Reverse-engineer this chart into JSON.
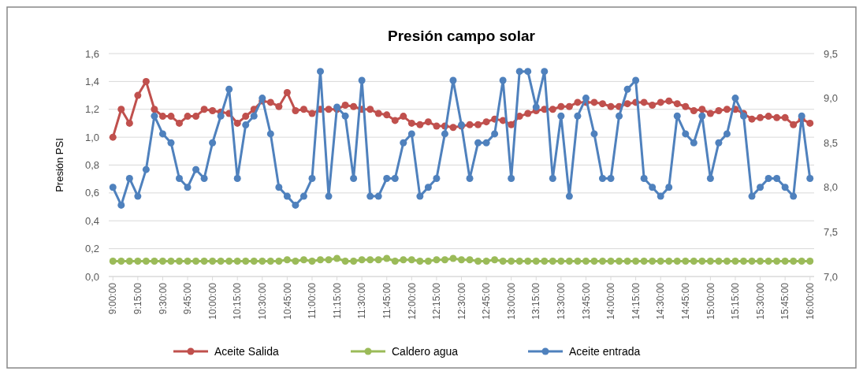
{
  "chart_data": {
    "type": "line",
    "title": "Presión campo solar",
    "ylabel": "Presión  PSI",
    "categories": [
      "9:00:00",
      null,
      null,
      "9:15:00",
      null,
      null,
      "9:30:00",
      null,
      null,
      "9:45:00",
      null,
      null,
      "10:00:00",
      null,
      null,
      "10:15:00",
      null,
      null,
      "10:30:00",
      null,
      null,
      "10:45:00",
      null,
      null,
      "11:00:00",
      null,
      null,
      "11:15:00",
      null,
      null,
      "11:30:00",
      null,
      null,
      "11:45:00",
      null,
      null,
      "12:00:00",
      null,
      null,
      "12:15:00",
      null,
      null,
      "12:30:00",
      null,
      null,
      "12:45:00",
      null,
      null,
      "13:00:00",
      null,
      null,
      "13:15:00",
      null,
      null,
      "13:30:00",
      null,
      null,
      "13:45:00",
      null,
      null,
      "14:00:00",
      null,
      null,
      "14:15:00",
      null,
      null,
      "14:30:00",
      null,
      null,
      "14:45:00",
      null,
      null,
      "15:00:00",
      null,
      null,
      "15:15:00",
      null,
      null,
      "15:30:00",
      null,
      null,
      "15:45:00",
      null,
      null,
      "16:00:00"
    ],
    "series": [
      {
        "name": "Aceite Salida",
        "color": "#c0504d",
        "values": [
          1.0,
          1.2,
          1.1,
          1.3,
          1.4,
          1.2,
          1.15,
          1.15,
          1.1,
          1.15,
          1.15,
          1.2,
          1.19,
          1.18,
          1.17,
          1.1,
          1.15,
          1.2,
          1.26,
          1.25,
          1.22,
          1.32,
          1.19,
          1.2,
          1.17,
          1.2,
          1.2,
          1.2,
          1.23,
          1.22,
          1.2,
          1.2,
          1.17,
          1.16,
          1.12,
          1.15,
          1.1,
          1.09,
          1.11,
          1.08,
          1.08,
          1.07,
          1.08,
          1.09,
          1.09,
          1.11,
          1.13,
          1.12,
          1.09,
          1.15,
          1.17,
          1.19,
          1.2,
          1.2,
          1.22,
          1.22,
          1.25,
          1.25,
          1.25,
          1.24,
          1.22,
          1.22,
          1.24,
          1.25,
          1.25,
          1.23,
          1.25,
          1.26,
          1.24,
          1.22,
          1.19,
          1.2,
          1.17,
          1.19,
          1.2,
          1.2,
          1.17,
          1.13,
          1.14,
          1.15,
          1.14,
          1.14,
          1.09,
          1.13,
          1.1
        ]
      },
      {
        "name": "Caldero agua",
        "color": "#9bbb59",
        "values": [
          0.11,
          0.11,
          0.11,
          0.11,
          0.11,
          0.11,
          0.11,
          0.11,
          0.11,
          0.11,
          0.11,
          0.11,
          0.11,
          0.11,
          0.11,
          0.11,
          0.11,
          0.11,
          0.11,
          0.11,
          0.11,
          0.12,
          0.11,
          0.12,
          0.11,
          0.12,
          0.12,
          0.13,
          0.11,
          0.11,
          0.12,
          0.12,
          0.12,
          0.13,
          0.11,
          0.12,
          0.12,
          0.11,
          0.11,
          0.12,
          0.12,
          0.13,
          0.12,
          0.12,
          0.11,
          0.11,
          0.12,
          0.11,
          0.11,
          0.11,
          0.11,
          0.11,
          0.11,
          0.11,
          0.11,
          0.11,
          0.11,
          0.11,
          0.11,
          0.11,
          0.11,
          0.11,
          0.11,
          0.11,
          0.11,
          0.11,
          0.11,
          0.11,
          0.11,
          0.11,
          0.11,
          0.11,
          0.11,
          0.11,
          0.11,
          0.11,
          0.11,
          0.11,
          0.11,
          0.11,
          0.11,
          0.11,
          0.11,
          0.11,
          0.11
        ]
      },
      {
        "name": "Aceite entrada",
        "color": "#4f81bd",
        "axis": "y2",
        "values": [
          8.0,
          7.8,
          8.1,
          7.9,
          8.2,
          8.8,
          8.6,
          8.5,
          8.1,
          8.0,
          8.2,
          8.1,
          8.5,
          8.8,
          9.1,
          8.1,
          8.7,
          8.8,
          9.0,
          8.6,
          8.0,
          7.9,
          7.8,
          7.9,
          8.1,
          9.3,
          7.9,
          8.9,
          8.8,
          8.1,
          9.2,
          7.9,
          7.9,
          8.1,
          8.1,
          8.5,
          8.6,
          7.9,
          8.0,
          8.1,
          8.6,
          9.2,
          8.7,
          8.1,
          8.5,
          8.5,
          8.6,
          9.2,
          8.1,
          9.3,
          9.3,
          8.9,
          9.3,
          8.1,
          8.8,
          7.9,
          8.8,
          9.0,
          8.6,
          8.1,
          8.1,
          8.8,
          9.1,
          9.2,
          8.1,
          8.0,
          7.9,
          8.0,
          8.8,
          8.6,
          8.5,
          8.8,
          8.1,
          8.5,
          8.6,
          9.0,
          8.8,
          7.9,
          8.0,
          8.1,
          8.1,
          8.0,
          7.9,
          8.8,
          8.1
        ]
      }
    ],
    "ylim": [
      0,
      1.6
    ],
    "yticks": [
      {
        "value": 0,
        "label": "0,0"
      },
      {
        "value": 0.2,
        "label": "0,2"
      },
      {
        "value": 0.4,
        "label": "0,4"
      },
      {
        "value": 0.6,
        "label": "0,6"
      },
      {
        "value": 0.8,
        "label": "0,8"
      },
      {
        "value": 1.0,
        "label": "1,0"
      },
      {
        "value": 1.2,
        "label": "1,2"
      },
      {
        "value": 1.4,
        "label": "1,4"
      },
      {
        "value": 1.6,
        "label": "1,6"
      }
    ],
    "y2lim": [
      7.0,
      9.5
    ],
    "y2ticks": [
      {
        "value": 7.0,
        "label": "7,0"
      },
      {
        "value": 7.5,
        "label": "7,5"
      },
      {
        "value": 8.0,
        "label": "8,0"
      },
      {
        "value": 8.5,
        "label": "8,5"
      },
      {
        "value": 9.0,
        "label": "9,0"
      },
      {
        "value": 9.5,
        "label": "9,5"
      }
    ],
    "grid": "y",
    "legend": "bottom",
    "marker": "circle",
    "line_style": "solid"
  }
}
